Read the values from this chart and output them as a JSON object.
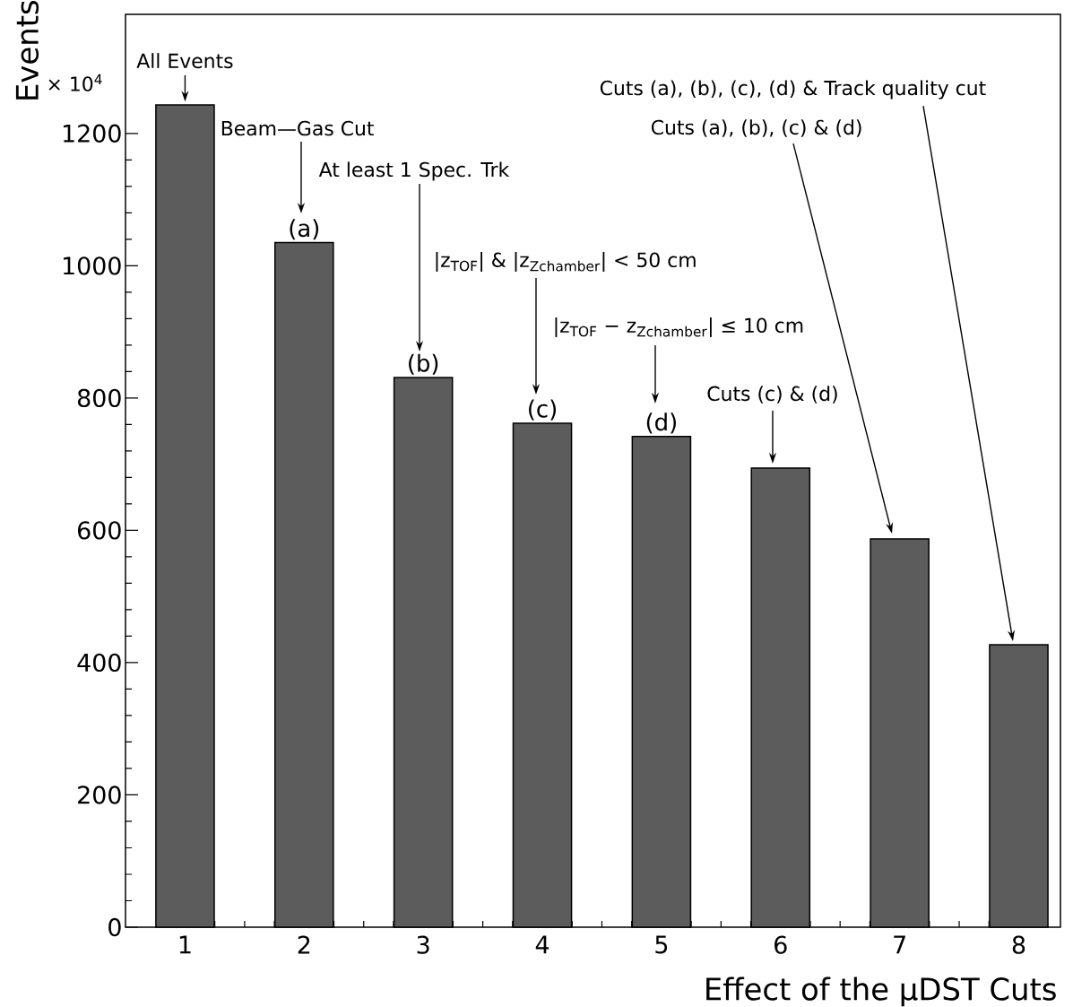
{
  "chart_data": {
    "type": "bar",
    "xlabel": "Effect of the μDST Cuts",
    "ylabel": "Events",
    "categories": [
      "1",
      "2",
      "3",
      "4",
      "5",
      "6",
      "7",
      "8"
    ],
    "values": [
      1243,
      1035,
      831,
      762,
      742,
      694,
      587,
      427
    ],
    "color": "#5c5c5c",
    "ylim": [
      0,
      1380
    ],
    "yticks": [
      0,
      200,
      400,
      600,
      800,
      1000,
      1200
    ],
    "annotations": [
      {
        "text": "All Events",
        "x": "1",
        "y": 1243
      },
      {
        "text": "(a)",
        "x": "2",
        "y": 1035
      },
      "Beam—Gas Cut",
      {
        "text": "(b)",
        "x": "3",
        "y": 831
      },
      "At least 1 Spec. Trk",
      {
        "text": "(c)",
        "x": "4",
        "y": 762
      },
      "|z$_{TOF}$| & |z$_{Zchamber}$| < 50 cm",
      {
        "text": "(d)",
        "x": "5",
        "y": 742
      },
      "|z$_{TOF}$ − z$_{Zchamber}$| ≤ 10 cm",
      "Cuts (c) & (d)",
      "Cuts (a), (b), (c) & (d)",
      "Cuts (a), (b), (c), (d) & Track quality cut",
      "× 10$^{4}$"
    ]
  }
}
